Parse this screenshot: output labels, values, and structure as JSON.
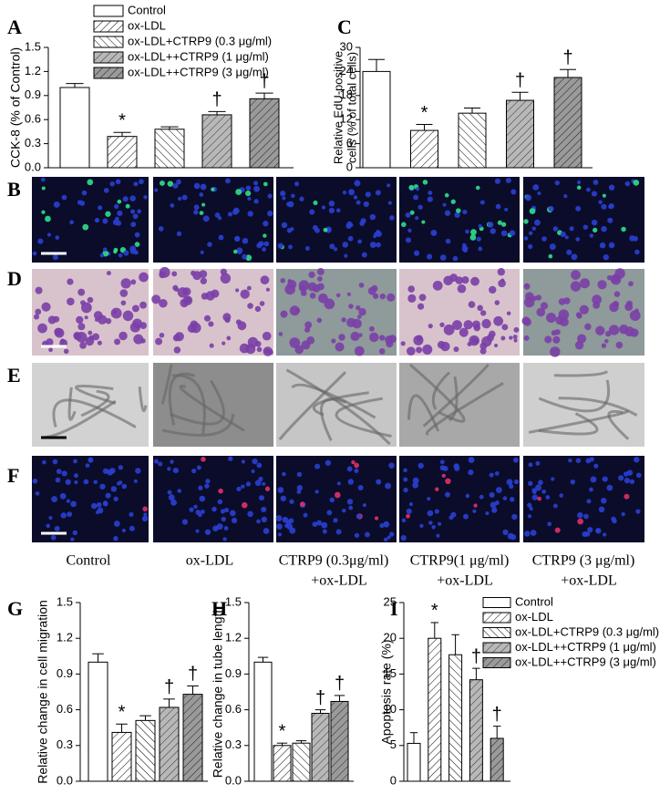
{
  "chart_data": [
    {
      "type": "bar",
      "panel_label": "A",
      "ylabel": "CCK-8 (% of Control)",
      "values": [
        1.0,
        0.39,
        0.48,
        0.66,
        0.86
      ],
      "errors": [
        0.05,
        0.05,
        0.03,
        0.04,
        0.07
      ],
      "annotations": [
        null,
        "*",
        null,
        "†",
        "†"
      ],
      "legend": [
        "Control",
        "ox-LDL",
        "ox-LDL+CTRP9 (0.3 μg/ml)",
        "ox-LDL++CTRP9 (1 μg/ml)",
        "ox-LDL++CTRP9 (3 μg/ml)"
      ],
      "ylim": [
        0,
        1.5
      ],
      "yticks": [
        {
          "value": 0,
          "label": "0.0"
        },
        0.3,
        0.6,
        0.9,
        1.2,
        1.5
      ]
    },
    {
      "type": "bar",
      "panel_label": "C",
      "ylabel": [
        "Relative EdU-positive",
        "cells (% of total cells)"
      ],
      "values": [
        24,
        9.3,
        13.6,
        16.8,
        22.5
      ],
      "errors": [
        3,
        1.5,
        1.3,
        2,
        2
      ],
      "annotations": [
        null,
        "*",
        null,
        "†",
        "†"
      ],
      "ylim": [
        0,
        30
      ],
      "yticks": [
        0,
        6,
        12,
        18,
        24,
        30
      ]
    },
    {
      "type": "bar",
      "panel_label": "G",
      "ylabel": "Relative change in cell migration",
      "values": [
        1.0,
        0.41,
        0.51,
        0.62,
        0.73
      ],
      "errors": [
        0.07,
        0.07,
        0.04,
        0.07,
        0.07
      ],
      "annotations": [
        null,
        "*",
        null,
        "†",
        "†"
      ],
      "ylim": [
        0,
        1.5
      ],
      "yticks": [
        {
          "value": 0,
          "label": "0.0"
        },
        0.3,
        0.6,
        0.9,
        1.2,
        1.5
      ]
    },
    {
      "type": "bar",
      "panel_label": "H",
      "ylabel": "Relative change in tube length",
      "values": [
        1.0,
        0.3,
        0.32,
        0.57,
        0.67
      ],
      "errors": [
        0.04,
        0.02,
        0.02,
        0.03,
        0.05
      ],
      "annotations": [
        null,
        "*",
        null,
        "†",
        "†"
      ],
      "ylim": [
        0,
        1.5
      ],
      "yticks": [
        {
          "value": 0,
          "label": "0.0"
        },
        0.3,
        0.6,
        0.9,
        1.2,
        1.5
      ]
    },
    {
      "type": "bar",
      "panel_label": "I",
      "ylabel": "Apoptosis rate (%)",
      "values": [
        5.3,
        20,
        17.7,
        14.2,
        6.0
      ],
      "errors": [
        1.5,
        2.2,
        2.8,
        1.6,
        1.7
      ],
      "annotations": [
        null,
        "*",
        null,
        "†",
        "†"
      ],
      "legend": [
        "Control",
        "ox-LDL",
        "ox-LDL+CTRP9 (0.3 μg/ml)",
        "ox-LDL++CTRP9 (1 μg/ml)",
        "ox-LDL++CTRP9 (3 μg/ml)"
      ],
      "ylim": [
        0,
        25
      ],
      "yticks": [
        0,
        5,
        10,
        15,
        20,
        25
      ]
    }
  ],
  "image_panels": {
    "row_labels": [
      "B",
      "D",
      "E",
      "F"
    ],
    "column_labels": [
      [
        "Control"
      ],
      [
        "ox-LDL"
      ],
      [
        "CTRP9 (0.3μg/ml)",
        "+ox-LDL"
      ],
      [
        "CTRP9(1 μg/ml)",
        "+ox-LDL"
      ],
      [
        "CTRP9 (3 μg/ml)",
        "+ox-LDL"
      ]
    ]
  }
}
